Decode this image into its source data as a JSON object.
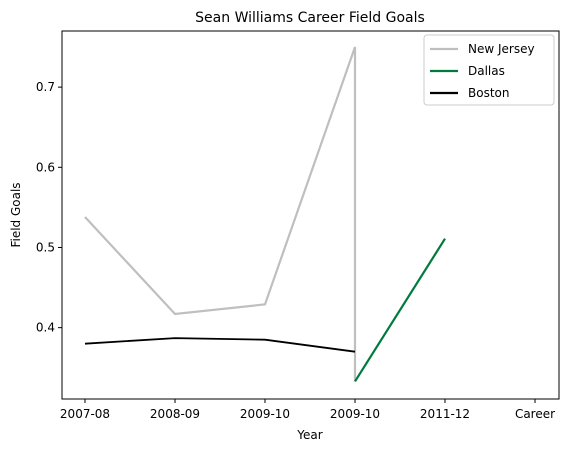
{
  "chart_data": {
    "type": "line",
    "title": "Sean Williams  Career Field Goals",
    "xlabel": "Year",
    "ylabel": "Field Goals",
    "categories": [
      "2007-08",
      "2008-09",
      "2009-10",
      "2009-10",
      "2011-12",
      "Career"
    ],
    "ylim": [
      0.311,
      0.77
    ],
    "yticks": [
      0.4,
      0.5,
      0.6,
      0.7
    ],
    "ytick_labels": [
      "0.4",
      "0.5",
      "0.6",
      "0.7"
    ],
    "grid": false,
    "legend": "top-right",
    "series": [
      {
        "name": "New Jersey",
        "color": "#bfbfbf",
        "points": [
          {
            "x": 0,
            "y": 0.538
          },
          {
            "x": 1,
            "y": 0.417
          },
          {
            "x": 2,
            "y": 0.429
          },
          {
            "x": 3,
            "y": 0.75
          },
          {
            "x": 3,
            "y": 0.333
          }
        ]
      },
      {
        "name": "Dallas",
        "color": "#007a3d",
        "points": [
          {
            "x": 3,
            "y": 0.333
          },
          {
            "x": 4,
            "y": 0.511
          }
        ]
      },
      {
        "name": "Boston",
        "color": "#000000",
        "points": [
          {
            "x": 0,
            "y": 0.38
          },
          {
            "x": 1,
            "y": 0.387
          },
          {
            "x": 2,
            "y": 0.385
          },
          {
            "x": 3,
            "y": 0.37
          }
        ]
      }
    ]
  }
}
